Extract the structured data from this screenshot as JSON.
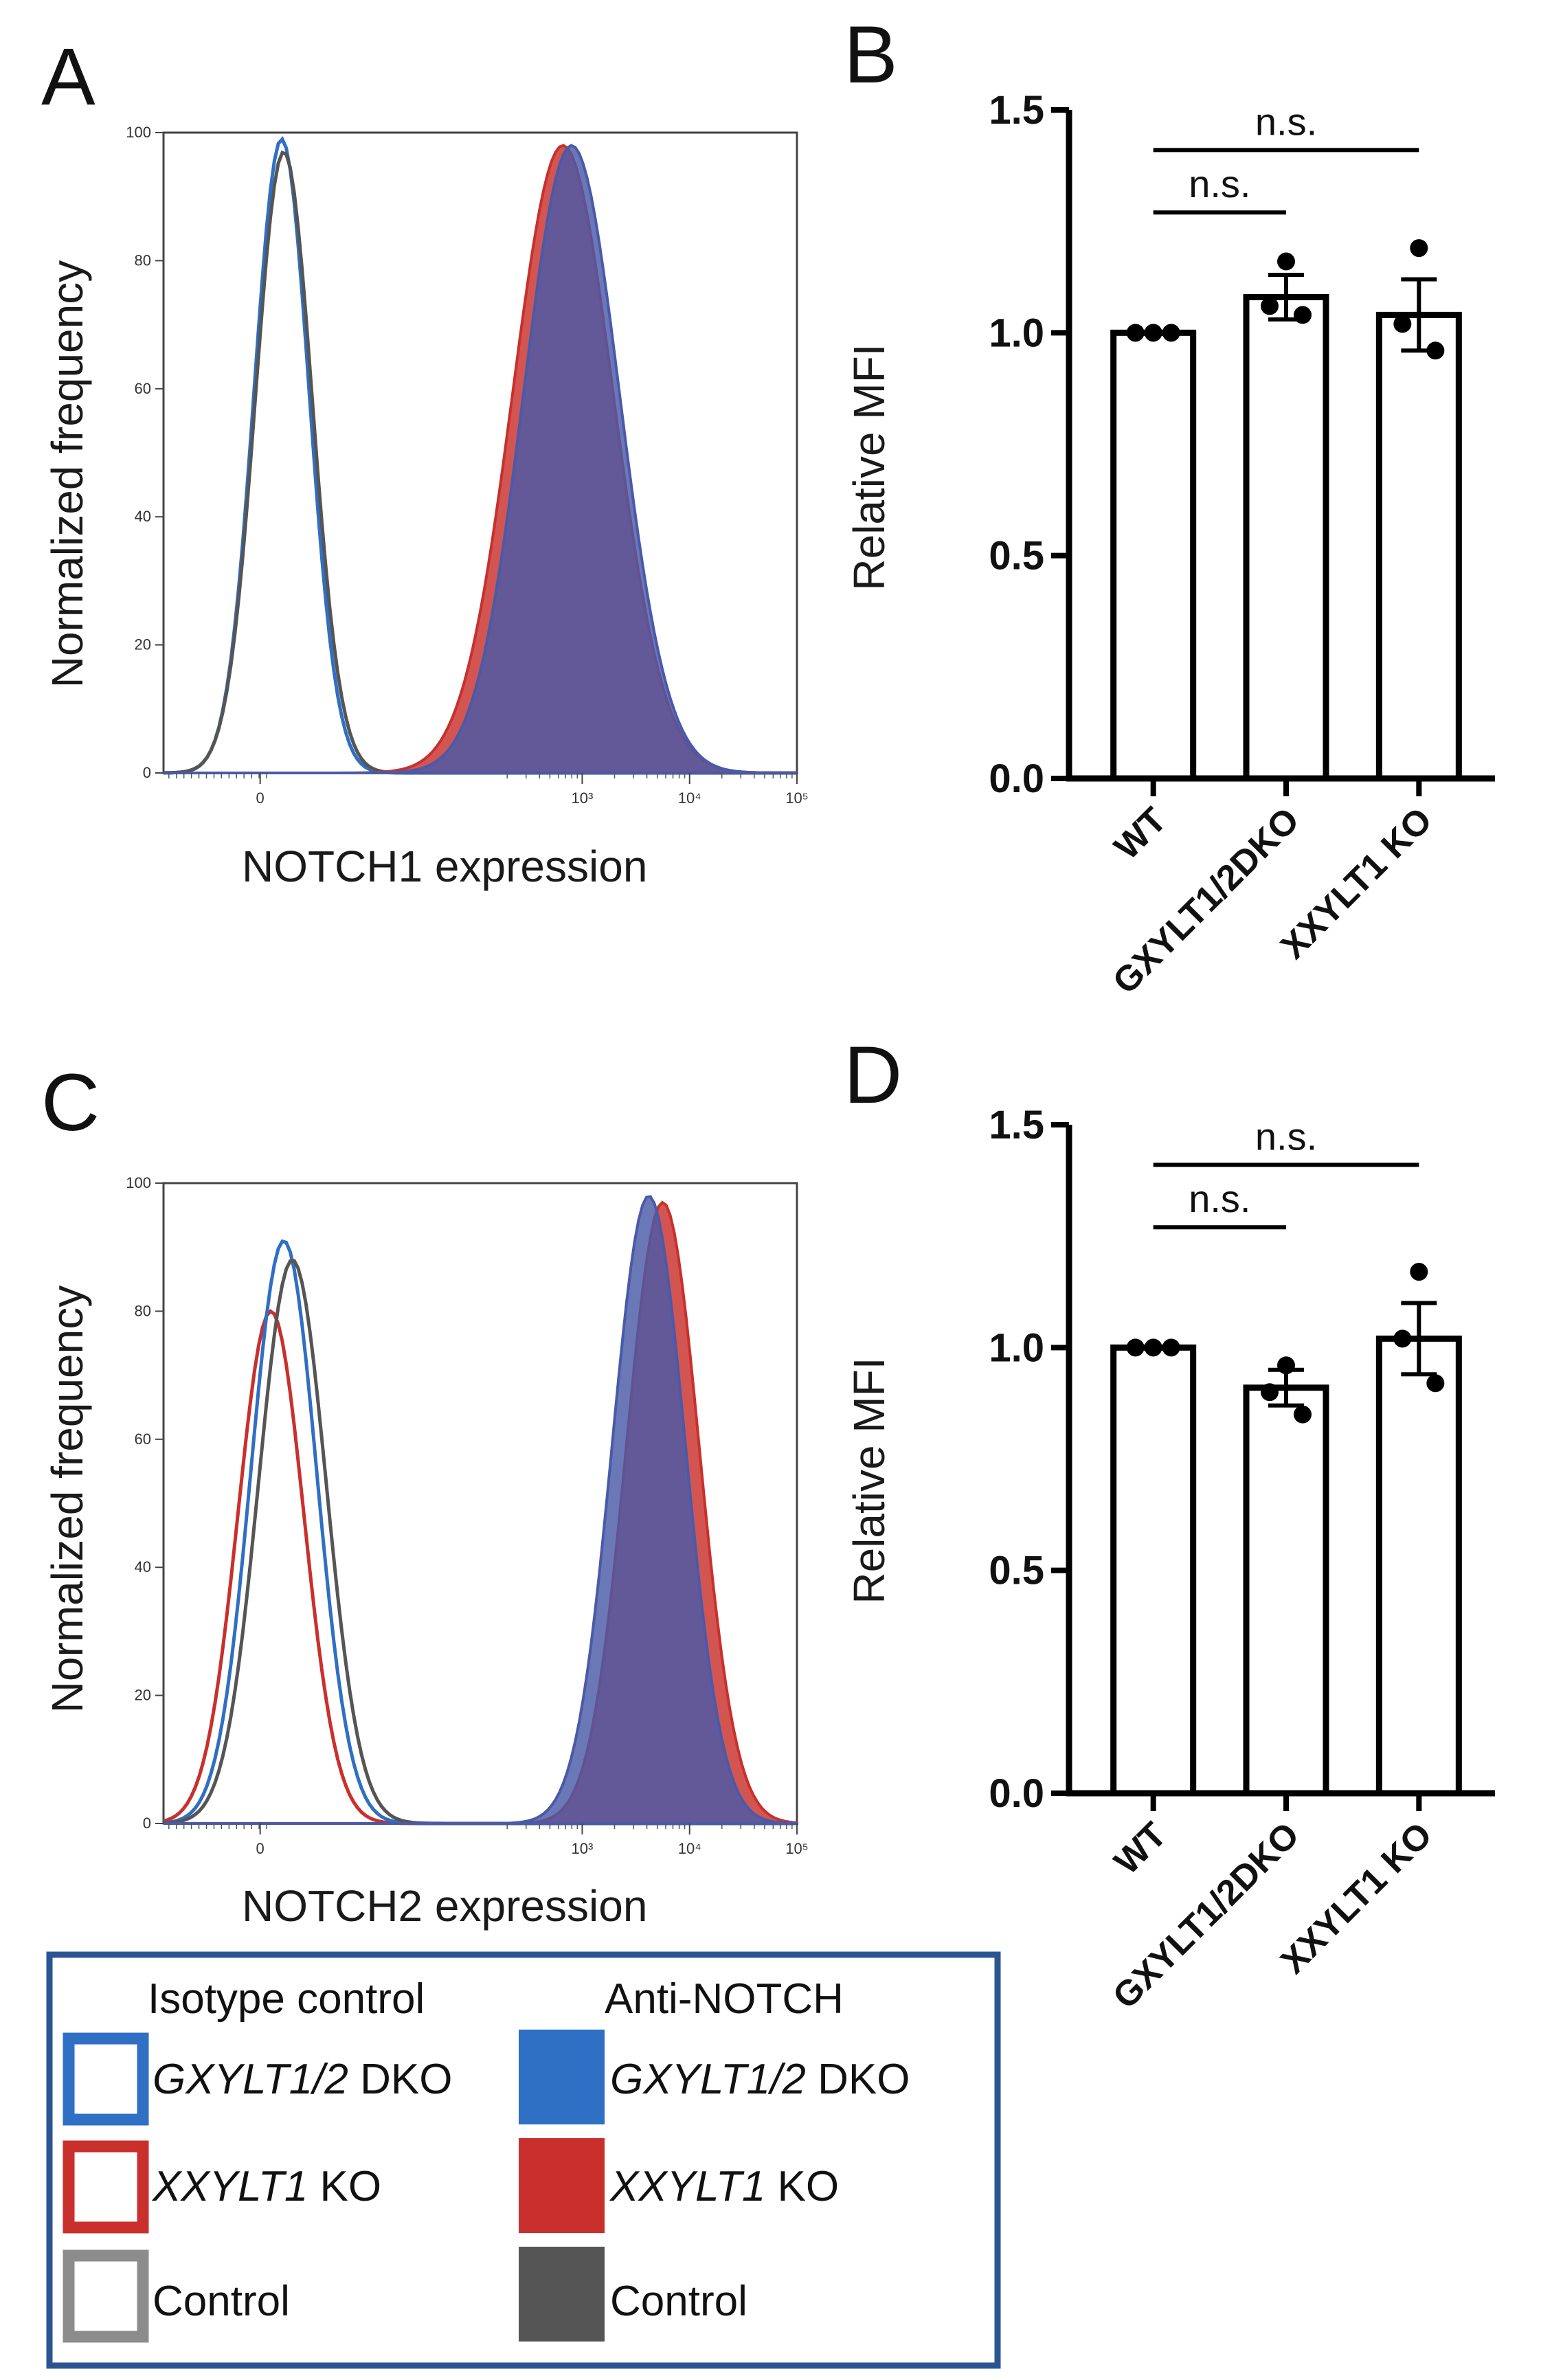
{
  "figure": {
    "panels": [
      "A",
      "B",
      "C",
      "D"
    ],
    "legend": {
      "isotype_header": "Isotype control",
      "anti_header": "Anti-NOTCH",
      "rows": [
        {
          "gene": "GXYLT1/2",
          "suffix": " DKO",
          "color": "#2f6fc4",
          "fill": "#2f6fc4"
        },
        {
          "gene": "XXYLT1",
          "suffix": " KO",
          "color": "#c9302c",
          "fill": "#c9302c"
        },
        {
          "gene": "",
          "suffix": "Control",
          "color": "#8c8c8c",
          "fill": "#555555"
        }
      ],
      "border_color": "#2b5592"
    }
  },
  "chart_data": [
    {
      "id": "A",
      "type": "area",
      "title": "",
      "xlabel": "NOTCH1  expression",
      "ylabel": "Normalized frequency",
      "ylim": [
        0,
        100
      ],
      "yticks": [
        "0",
        "20",
        "40",
        "60",
        "80",
        "100"
      ],
      "xticks": [
        "0",
        "10³",
        "10⁴",
        "10⁵"
      ],
      "series": [
        {
          "name": "Isotype GXYLT1/2 DKO",
          "filled": false,
          "color": "#2f6fc4",
          "peak_at": 0.2,
          "peak": 99,
          "width": 0.6
        },
        {
          "name": "Isotype Control",
          "filled": false,
          "color": "#555555",
          "peak_at": 0.22,
          "peak": 97,
          "width": 0.62
        },
        {
          "name": "Anti-NOTCH XXYLT1 KO",
          "filled": true,
          "color": "#c9302c",
          "peak_at": 2.82,
          "peak": 98,
          "width": 1.1
        },
        {
          "name": "Anti-NOTCH GXYLT1/2 DKO",
          "filled": true,
          "color": "#4a5aa8",
          "peak_at": 2.9,
          "peak": 98,
          "width": 1.05
        }
      ]
    },
    {
      "id": "B",
      "type": "bar",
      "xlabel": "",
      "ylabel": "Relative MFI",
      "ylim": [
        0,
        1.5
      ],
      "yticks": [
        "0.0",
        "0.5",
        "1.0",
        "1.5"
      ],
      "categories": [
        "WT",
        "GXYLT1/2DKO",
        "XXYLT1 KO"
      ],
      "values": [
        1.0,
        1.08,
        1.04
      ],
      "errors": [
        0.0,
        0.05,
        0.08
      ],
      "points": [
        [
          1.0,
          1.0,
          1.0
        ],
        [
          1.16,
          1.06,
          1.04
        ],
        [
          1.19,
          1.02,
          0.96
        ]
      ],
      "significance": [
        {
          "from": 0,
          "to": 1,
          "label": "n.s."
        },
        {
          "from": 0,
          "to": 2,
          "label": "n.s."
        }
      ]
    },
    {
      "id": "C",
      "type": "area",
      "title": "",
      "xlabel": "NOTCH2  expression",
      "ylabel": "Normalized frequency",
      "ylim": [
        0,
        100
      ],
      "yticks": [
        "0",
        "20",
        "40",
        "60",
        "80",
        "100"
      ],
      "xticks": [
        "0",
        "10³",
        "10⁴",
        "10⁵"
      ],
      "series": [
        {
          "name": "Isotype XXYLT1 KO",
          "filled": false,
          "color": "#c9302c",
          "peak_at": 0.1,
          "peak": 80,
          "width": 0.72
        },
        {
          "name": "Isotype GXYLT1/2 DKO",
          "filled": false,
          "color": "#2f6fc4",
          "peak_at": 0.22,
          "peak": 91,
          "width": 0.72
        },
        {
          "name": "Isotype Control",
          "filled": false,
          "color": "#555555",
          "peak_at": 0.3,
          "peak": 88,
          "width": 0.74
        },
        {
          "name": "Anti-NOTCH XXYLT1 KO",
          "filled": true,
          "color": "#c9302c",
          "peak_at": 3.75,
          "peak": 97,
          "width": 0.8
        },
        {
          "name": "Anti-NOTCH GXYLT1/2 DKO",
          "filled": true,
          "color": "#4a5aa8",
          "peak_at": 3.62,
          "peak": 98,
          "width": 0.8
        }
      ]
    },
    {
      "id": "D",
      "type": "bar",
      "xlabel": "",
      "ylabel": "Relative MFI",
      "ylim": [
        0,
        1.5
      ],
      "yticks": [
        "0.0",
        "0.5",
        "1.0",
        "1.5"
      ],
      "categories": [
        "WT",
        "GXYLT1/2DKO",
        "XXYLT1 KO"
      ],
      "values": [
        1.0,
        0.91,
        1.02
      ],
      "errors": [
        0.0,
        0.04,
        0.08
      ],
      "points": [
        [
          1.0,
          1.0,
          1.0
        ],
        [
          0.96,
          0.9,
          0.85
        ],
        [
          1.17,
          1.02,
          0.92
        ]
      ],
      "significance": [
        {
          "from": 0,
          "to": 1,
          "label": "n.s."
        },
        {
          "from": 0,
          "to": 2,
          "label": "n.s."
        }
      ]
    }
  ]
}
